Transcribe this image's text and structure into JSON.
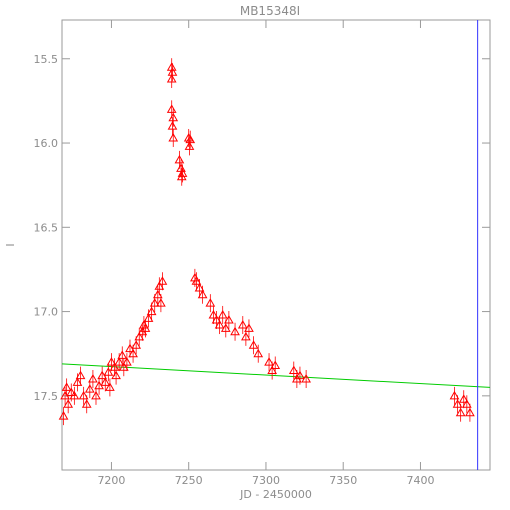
{
  "chart_data": {
    "type": "scatter",
    "title": "MB15348I",
    "xlabel": "JD - 2450000",
    "ylabel": "I",
    "xlim": [
      7168,
      7445
    ],
    "ylim": [
      17.94,
      15.27
    ],
    "y_inverted": true,
    "x_ticks": [
      7200,
      7250,
      7300,
      7350,
      7400
    ],
    "x_tick_labels": [
      "7200",
      "7250",
      "7300",
      "7350",
      "7400"
    ],
    "y_ticks": [
      15.5,
      16.0,
      16.5,
      17.0,
      17.5
    ],
    "y_tick_labels": [
      "15.5",
      "16.0",
      "16.5",
      "17.0",
      "17.5"
    ],
    "marker": "open-triangle",
    "colors": {
      "points": "#ff0000",
      "baseline": "#00cc00",
      "vline": "#3333ff",
      "axes": "#9a9a9a"
    },
    "points": [
      {
        "x": 7169,
        "y": 17.62
      },
      {
        "x": 7170,
        "y": 17.5
      },
      {
        "x": 7171,
        "y": 17.45
      },
      {
        "x": 7172,
        "y": 17.55
      },
      {
        "x": 7174,
        "y": 17.48
      },
      {
        "x": 7176,
        "y": 17.5
      },
      {
        "x": 7178,
        "y": 17.42
      },
      {
        "x": 7180,
        "y": 17.38
      },
      {
        "x": 7182,
        "y": 17.5
      },
      {
        "x": 7184,
        "y": 17.55
      },
      {
        "x": 7186,
        "y": 17.46
      },
      {
        "x": 7188,
        "y": 17.4
      },
      {
        "x": 7190,
        "y": 17.5
      },
      {
        "x": 7192,
        "y": 17.44
      },
      {
        "x": 7194,
        "y": 17.38
      },
      {
        "x": 7196,
        "y": 17.42
      },
      {
        "x": 7198,
        "y": 17.36
      },
      {
        "x": 7199,
        "y": 17.45
      },
      {
        "x": 7200,
        "y": 17.3
      },
      {
        "x": 7202,
        "y": 17.33
      },
      {
        "x": 7203,
        "y": 17.38
      },
      {
        "x": 7205,
        "y": 17.3
      },
      {
        "x": 7207,
        "y": 17.26
      },
      {
        "x": 7208,
        "y": 17.33
      },
      {
        "x": 7210,
        "y": 17.3
      },
      {
        "x": 7212,
        "y": 17.22
      },
      {
        "x": 7214,
        "y": 17.25
      },
      {
        "x": 7216,
        "y": 17.2
      },
      {
        "x": 7218,
        "y": 17.15
      },
      {
        "x": 7220,
        "y": 17.12
      },
      {
        "x": 7221,
        "y": 17.08
      },
      {
        "x": 7222,
        "y": 17.1
      },
      {
        "x": 7224,
        "y": 17.04
      },
      {
        "x": 7226,
        "y": 17.0
      },
      {
        "x": 7228,
        "y": 16.95
      },
      {
        "x": 7230,
        "y": 16.9
      },
      {
        "x": 7231,
        "y": 16.85
      },
      {
        "x": 7232,
        "y": 16.95
      },
      {
        "x": 7233,
        "y": 16.82
      },
      {
        "x": 7239,
        "y": 15.55
      },
      {
        "x": 7239,
        "y": 15.62
      },
      {
        "x": 7239.5,
        "y": 15.58
      },
      {
        "x": 7239,
        "y": 15.8
      },
      {
        "x": 7240,
        "y": 15.85
      },
      {
        "x": 7239.5,
        "y": 15.9
      },
      {
        "x": 7240,
        "y": 15.97
      },
      {
        "x": 7244,
        "y": 16.1
      },
      {
        "x": 7245,
        "y": 16.15
      },
      {
        "x": 7245.5,
        "y": 16.2
      },
      {
        "x": 7246,
        "y": 16.18
      },
      {
        "x": 7250,
        "y": 15.97
      },
      {
        "x": 7250.5,
        "y": 16.02
      },
      {
        "x": 7251,
        "y": 15.98
      },
      {
        "x": 7254,
        "y": 16.8
      },
      {
        "x": 7255,
        "y": 16.82
      },
      {
        "x": 7257,
        "y": 16.86
      },
      {
        "x": 7259,
        "y": 16.9
      },
      {
        "x": 7264,
        "y": 16.95
      },
      {
        "x": 7266,
        "y": 17.02
      },
      {
        "x": 7268,
        "y": 17.05
      },
      {
        "x": 7270,
        "y": 17.08
      },
      {
        "x": 7272,
        "y": 17.02
      },
      {
        "x": 7274,
        "y": 17.1
      },
      {
        "x": 7276,
        "y": 17.05
      },
      {
        "x": 7280,
        "y": 17.12
      },
      {
        "x": 7285,
        "y": 17.08
      },
      {
        "x": 7287,
        "y": 17.15
      },
      {
        "x": 7289,
        "y": 17.1
      },
      {
        "x": 7292,
        "y": 17.2
      },
      {
        "x": 7295,
        "y": 17.25
      },
      {
        "x": 7302,
        "y": 17.3
      },
      {
        "x": 7304,
        "y": 17.35
      },
      {
        "x": 7306,
        "y": 17.32
      },
      {
        "x": 7318,
        "y": 17.35
      },
      {
        "x": 7320,
        "y": 17.4
      },
      {
        "x": 7322,
        "y": 17.38
      },
      {
        "x": 7326,
        "y": 17.4
      },
      {
        "x": 7422,
        "y": 17.5
      },
      {
        "x": 7424,
        "y": 17.55
      },
      {
        "x": 7426,
        "y": 17.6
      },
      {
        "x": 7428,
        "y": 17.52
      },
      {
        "x": 7430,
        "y": 17.55
      },
      {
        "x": 7432,
        "y": 17.6
      }
    ],
    "baseline": [
      {
        "x": 7168,
        "y": 17.31
      },
      {
        "x": 7445,
        "y": 17.45
      }
    ],
    "vline_x": 7437
  }
}
